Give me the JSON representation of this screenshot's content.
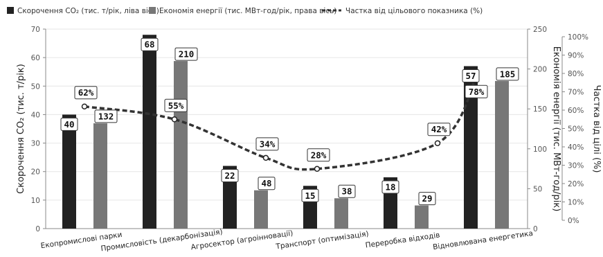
{
  "chart_data": {
    "type": "bar",
    "categories": [
      "Екопромислові парки",
      "Промисловість (декарбонізація)",
      "Агросектор (агроінновації)",
      "Транспорт (оптимізація)",
      "Переробка відходів",
      "Відновлювана енергетика"
    ],
    "series": [
      {
        "name": "Скорочення CO₂ (тис. т/рік, ліва вісь)",
        "axis": "left",
        "type": "bar",
        "color": "#222222",
        "values": [
          40,
          68,
          22,
          15,
          18,
          57
        ],
        "labels": [
          "40",
          "68",
          "22",
          "15",
          "18",
          "57"
        ]
      },
      {
        "name": "Економія енергії (тис. МВт-год/рік, права вісь)",
        "axis": "right",
        "type": "bar",
        "color": "#777777",
        "values": [
          132,
          210,
          48,
          38,
          29,
          185
        ],
        "labels": [
          "132",
          "210",
          "48",
          "38",
          "29",
          "185"
        ]
      },
      {
        "name": "Частка від цільового показника (%)",
        "axis": "right2",
        "type": "line",
        "style": "dashed",
        "color": "#333333",
        "values": [
          62,
          55,
          34,
          28,
          42,
          78
        ],
        "labels": [
          "62%",
          "55%",
          "34%",
          "28%",
          "42%",
          "78%"
        ]
      }
    ],
    "axes": {
      "left": {
        "label": "Скорочення CO₂ (тис. т/рік)",
        "range": [
          0,
          70
        ],
        "ticks": [
          "0",
          "10",
          "20",
          "30",
          "40",
          "50",
          "60",
          "70"
        ]
      },
      "right": {
        "label": "Економія енергії (тис. МВт-год/рік)",
        "range": [
          0,
          250
        ],
        "ticks": [
          "0",
          "50",
          "100",
          "150",
          "200",
          "250"
        ]
      },
      "right2": {
        "label": "Частка від цілі (%)",
        "range": [
          0,
          100
        ],
        "ticks": [
          "0%",
          "10%",
          "20%",
          "30%",
          "40%",
          "50%",
          "60%",
          "70%",
          "80%",
          "90%",
          "100%"
        ]
      }
    },
    "grid": "horizontal",
    "legend_position": "top-left"
  }
}
